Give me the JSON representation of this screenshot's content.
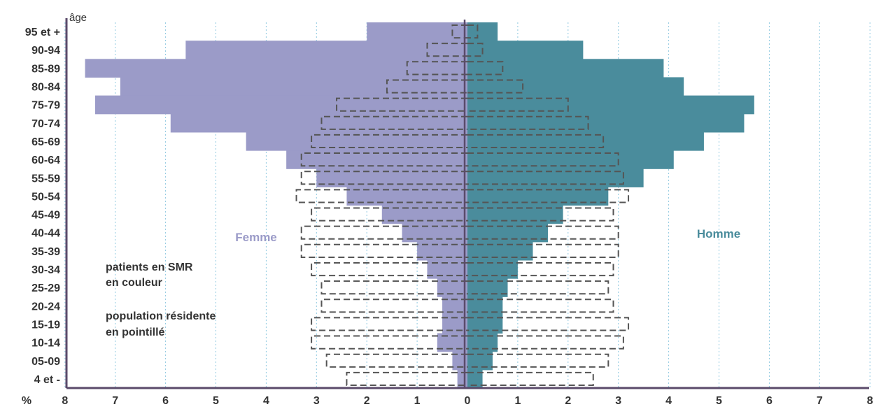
{
  "chart_data": {
    "type": "bar",
    "subtype": "population-pyramid",
    "y_axis_title": "âge",
    "x_axis_unit": "%",
    "x_tick_labels": [
      "8",
      "7",
      "6",
      "5",
      "4",
      "3",
      "2",
      "1",
      "0",
      "1",
      "2",
      "3",
      "4",
      "5",
      "6",
      "7",
      "8"
    ],
    "xlim": [
      -8,
      8
    ],
    "grid": "vertical dotted",
    "categories": [
      "95 et +",
      "90-94",
      "85-89",
      "80-84",
      "75-79",
      "70-74",
      "65-69",
      "60-64",
      "55-59",
      "50-54",
      "45-49",
      "40-44",
      "35-39",
      "30-34",
      "25-29",
      "20-24",
      "15-19",
      "10-14",
      "05-09",
      "4 et -"
    ],
    "series": [
      {
        "name": "Femme",
        "style": "filled",
        "color": "#9b9bc8",
        "values": [
          2.0,
          5.6,
          7.6,
          6.9,
          7.4,
          5.9,
          4.4,
          3.6,
          3.0,
          2.4,
          1.7,
          1.3,
          1.0,
          0.8,
          0.6,
          0.5,
          0.5,
          0.6,
          0.3,
          0.2
        ]
      },
      {
        "name": "Homme",
        "style": "filled",
        "color": "#4a8c9c",
        "values": [
          0.6,
          2.3,
          3.9,
          4.3,
          5.7,
          5.5,
          4.7,
          4.1,
          3.5,
          2.8,
          1.9,
          1.6,
          1.3,
          1.0,
          0.8,
          0.7,
          0.7,
          0.6,
          0.5,
          0.3
        ]
      },
      {
        "name": "population résidente Femme",
        "style": "dashed",
        "color": "#555555",
        "values": [
          0.3,
          0.8,
          1.2,
          1.6,
          2.6,
          2.9,
          3.1,
          3.3,
          3.3,
          3.4,
          3.1,
          3.3,
          3.3,
          3.1,
          2.9,
          2.9,
          3.1,
          3.1,
          2.8,
          2.4
        ]
      },
      {
        "name": "population résidente Homme",
        "style": "dashed",
        "color": "#555555",
        "values": [
          0.2,
          0.3,
          0.7,
          1.1,
          2.0,
          2.4,
          2.7,
          3.0,
          3.1,
          3.2,
          2.9,
          3.0,
          3.0,
          2.9,
          2.8,
          2.9,
          3.2,
          3.1,
          2.8,
          2.5
        ]
      }
    ],
    "legend": {
      "femme": "Femme",
      "homme": "Homme",
      "filled_line1": "patients en SMR",
      "filled_line2": "en couleur",
      "dashed_line1": "population résidente",
      "dashed_line2": "en pointillé"
    }
  },
  "colors": {
    "femme": "#9b9bc8",
    "homme": "#4a8c9c",
    "dashed": "#555555",
    "grid": "#8ec8e0",
    "axis": "#5a4a6a",
    "text": "#333333"
  }
}
